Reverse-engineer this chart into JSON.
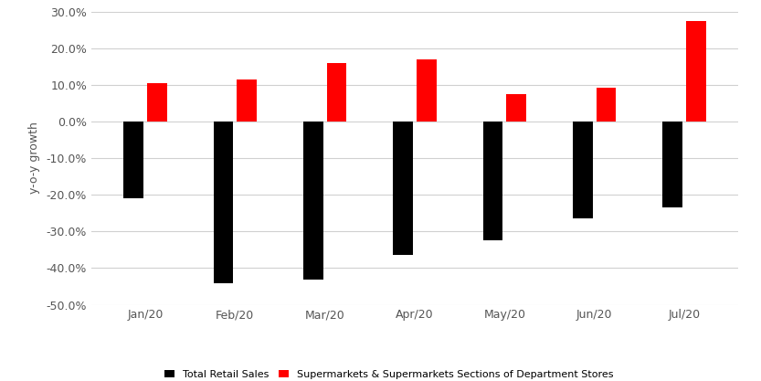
{
  "categories": [
    "Jan/20",
    "Feb/20",
    "Mar/20",
    "Apr/20",
    "May/20",
    "Jun/20",
    "Jul/20"
  ],
  "total_retail_sales": [
    -0.21,
    -0.44,
    -0.43,
    -0.365,
    -0.325,
    -0.265,
    -0.235
  ],
  "supermarkets": [
    0.105,
    0.115,
    0.16,
    0.17,
    0.075,
    0.092,
    0.275
  ],
  "bar_color_retail": "#000000",
  "bar_color_super": "#ff0000",
  "ylabel": "y-o-y growth",
  "ylim_min": -0.5,
  "ylim_max": 0.3,
  "yticks": [
    -0.5,
    -0.4,
    -0.3,
    -0.2,
    -0.1,
    0.0,
    0.1,
    0.2,
    0.3
  ],
  "legend_retail": "Total Retail Sales",
  "legend_super": "Supermarkets & Supermarkets Sections of Department Stores",
  "background_color": "#ffffff",
  "grid_color": "#d0d0d0",
  "bar_width": 0.22,
  "bar_gap": 0.04
}
